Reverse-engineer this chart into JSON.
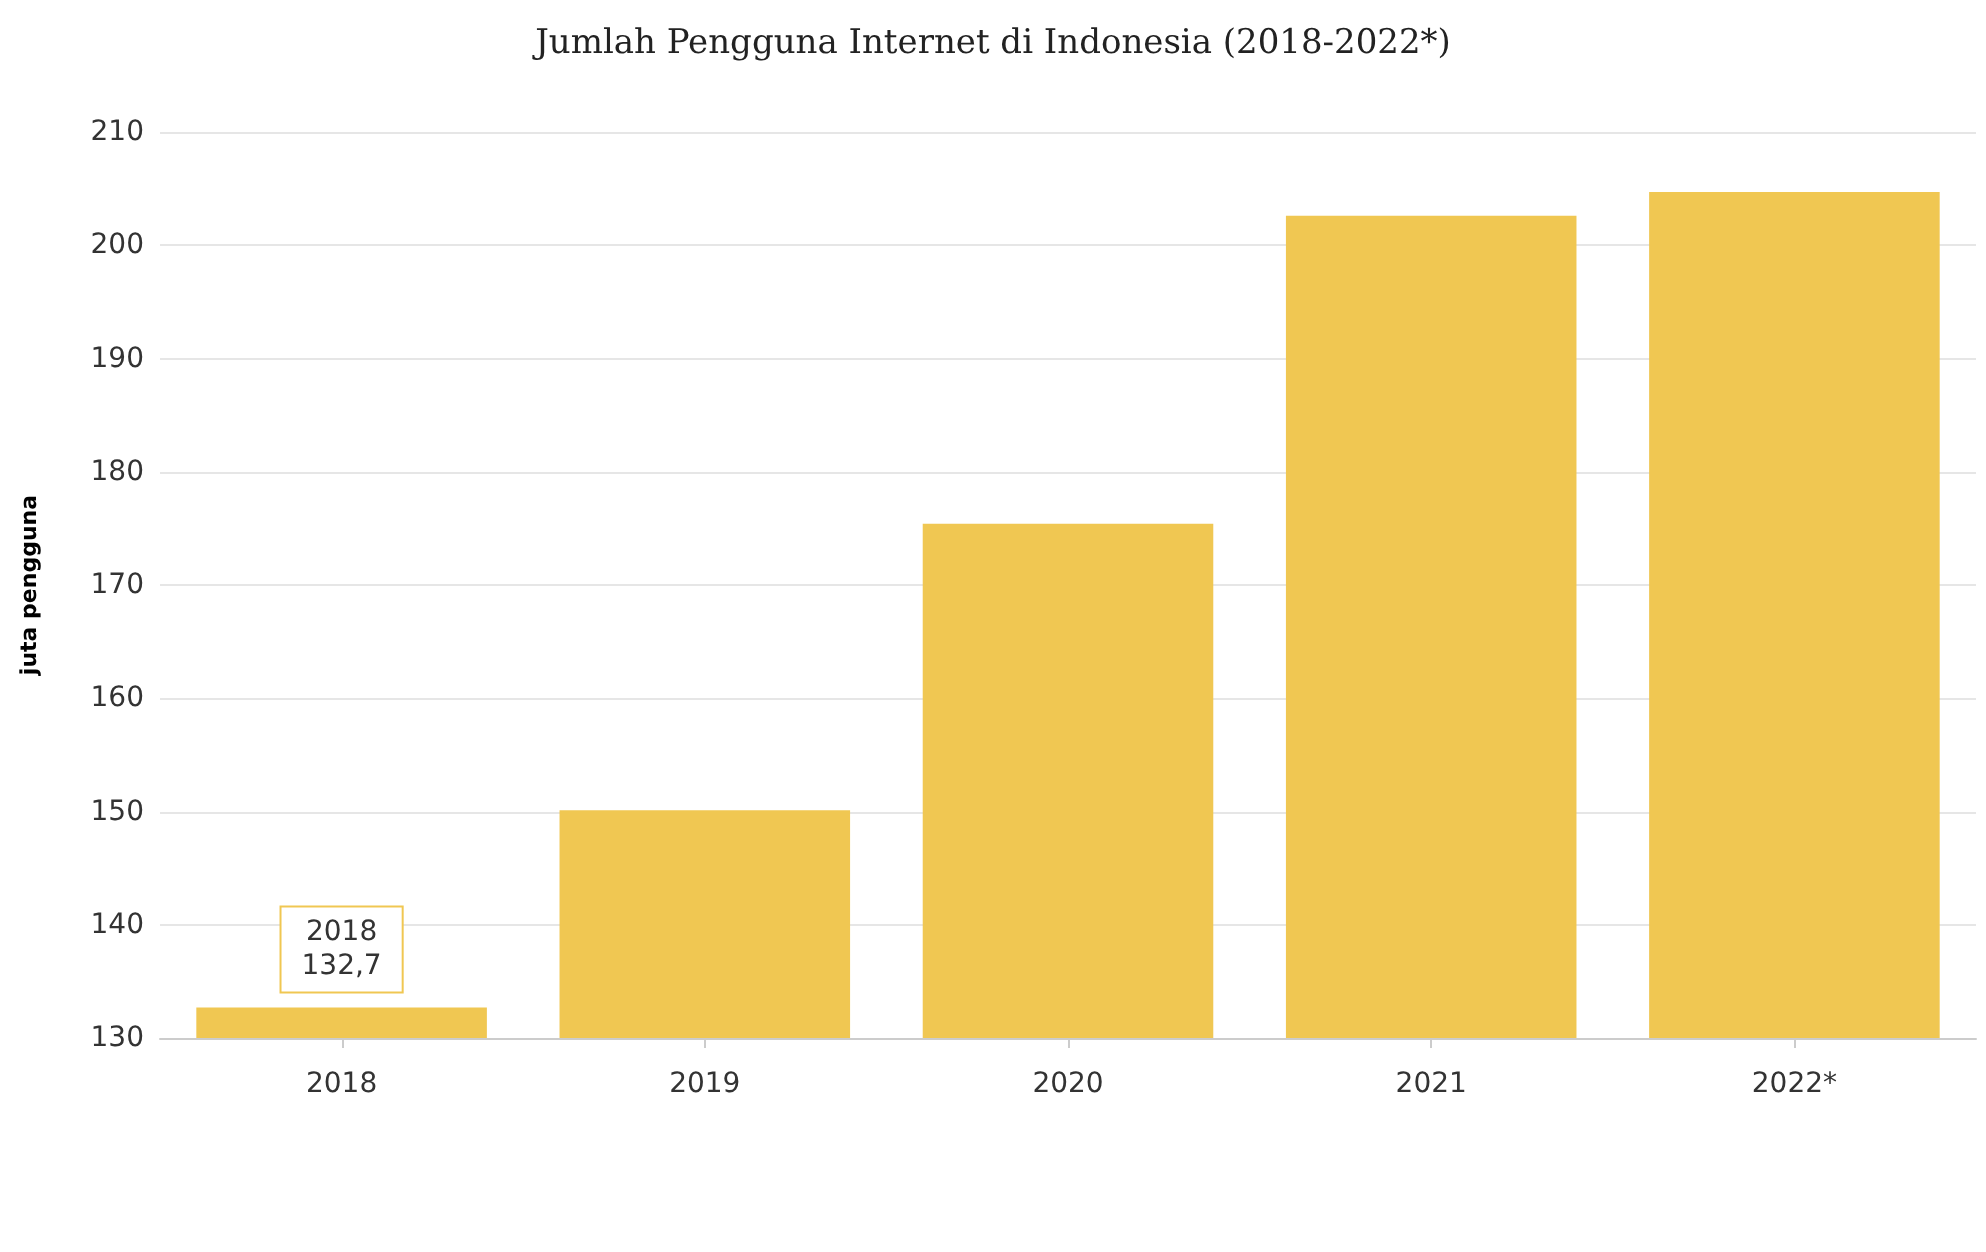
{
  "chart_data": {
    "type": "bar",
    "title": "Jumlah Pengguna Internet di Indonesia (2018-2022*)",
    "ylabel": "juta pengguna",
    "categories": [
      "2018",
      "2019",
      "2020",
      "2021",
      "2022*"
    ],
    "values": [
      132.7,
      150.1,
      175.4,
      202.6,
      204.7
    ],
    "color": "#f0c752",
    "ylim": [
      130,
      210
    ],
    "yticks": [
      130,
      140,
      150,
      160,
      170,
      180,
      190,
      200,
      210
    ],
    "grid": "y",
    "annotations": [
      {
        "text": "2018\n132,7",
        "x": "2018",
        "y": 132.7
      }
    ]
  }
}
